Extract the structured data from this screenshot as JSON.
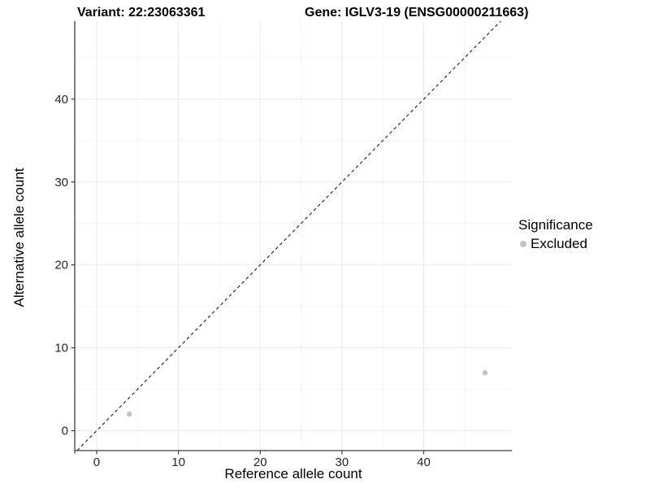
{
  "chart_data": {
    "type": "scatter",
    "title_left": "Variant: 22:23063361",
    "title_right": "Gene: IGLV3-19 (ENSG00000211663)",
    "xlabel": "Reference allele count",
    "ylabel": "Alternative allele count",
    "xlim": [
      -2.68,
      50.78
    ],
    "ylim": [
      -2.4,
      49.41
    ],
    "x_ticks": [
      0,
      10,
      20,
      30,
      40
    ],
    "y_ticks": [
      0,
      10,
      20,
      30,
      40
    ],
    "x_minor": [
      5,
      15,
      25,
      35,
      45
    ],
    "y_minor": [
      5,
      15,
      25,
      35,
      45
    ],
    "grid": true,
    "points": [
      {
        "x": 4,
        "y": 2,
        "series": "Excluded"
      },
      {
        "x": 47.5,
        "y": 7,
        "series": "Excluded"
      }
    ],
    "abline": {
      "slope": 1,
      "intercept": 0,
      "style": "dashed"
    },
    "legend": {
      "position": "right",
      "title": "Significance",
      "entries": [
        {
          "label": "Excluded",
          "color": "#c3c3c3"
        }
      ]
    },
    "colors": {
      "point": "#c3c3c3",
      "grid_major": "#e9e9e9",
      "grid_minor": "#f4f4f4",
      "axis_line": "#3c3c3c",
      "tick_label": "#262626",
      "abline": "#1a1a1a",
      "background": "#ffffff"
    }
  }
}
